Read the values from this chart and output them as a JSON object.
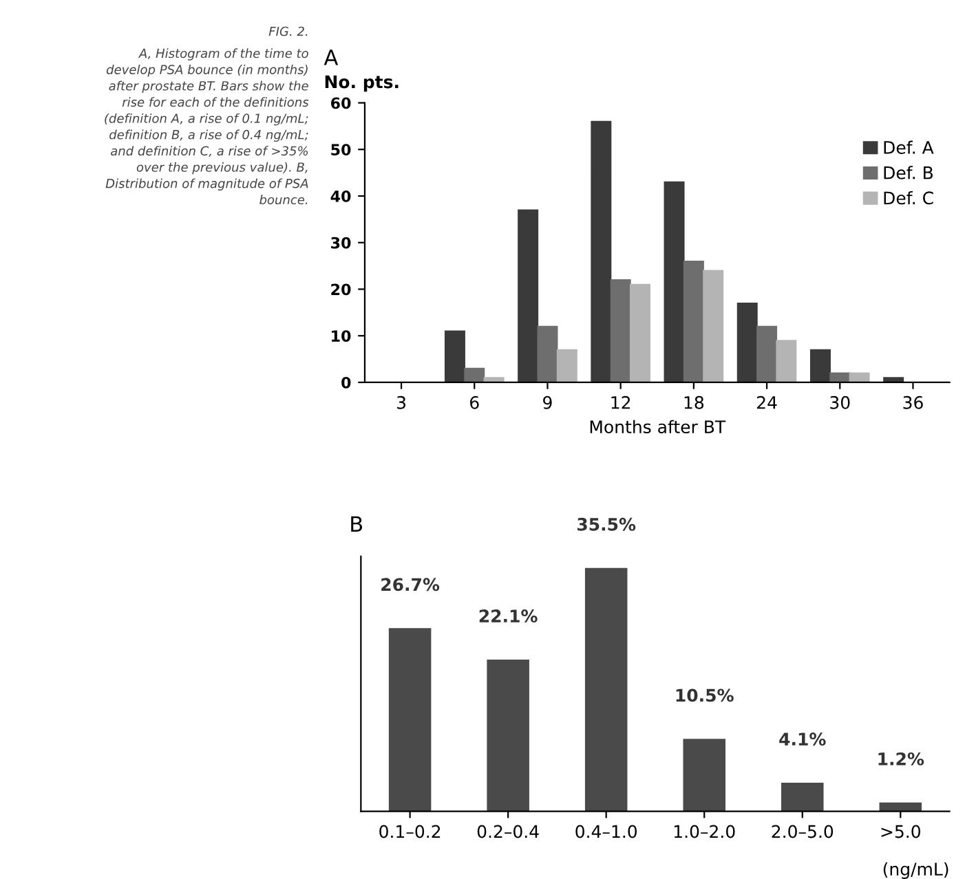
{
  "chart_data": [
    {
      "type": "bar",
      "title": "A",
      "ylabel": "No. pts.",
      "xlabel": "Months after BT",
      "categories": [
        "3",
        "6",
        "9",
        "12",
        "18",
        "24",
        "30",
        "36"
      ],
      "series": [
        {
          "name": "Def. A",
          "color": "#3a3a3a",
          "values": [
            0,
            11,
            37,
            56,
            43,
            17,
            7,
            1
          ]
        },
        {
          "name": "Def. B",
          "color": "#6e6e6e",
          "values": [
            0,
            3,
            12,
            22,
            26,
            12,
            2,
            0
          ]
        },
        {
          "name": "Def. C",
          "color": "#b4b4b4",
          "values": [
            0,
            1,
            7,
            21,
            24,
            9,
            2,
            0
          ]
        }
      ],
      "ylim": [
        0,
        60
      ],
      "yticks": [
        0,
        10,
        20,
        30,
        40,
        50,
        60
      ],
      "grid": false,
      "legend": "top right",
      "annotations": [
        "FIG. 2.",
        "A, Histogram of the time to\ndevelop PSA bounce (in months)\nafter prostate BT. Bars show the\nrise for each of the definitions\n(definition A, a rise of 0.1 ng/mL;\ndefinition B, a rise of 0.4 ng/mL;\nand definition C, a rise of >35%\nover the previous value). B,\nDistribution of magnitude of PSA\nbounce."
      ]
    },
    {
      "type": "bar",
      "title": "B",
      "xlabel": "(ng/mL)",
      "categories": [
        "0.1–0.2",
        "0.2–0.4",
        "0.4–1.0",
        "1.0–2.0",
        "2.0–5.0",
        ">5.0"
      ],
      "series": [
        {
          "color": "#4a4a4a",
          "values": [
            26.7,
            22.1,
            35.5,
            10.5,
            4.1,
            1.2
          ],
          "value_labels": [
            "26.7%",
            "22.1%",
            "35.5%",
            "10.5%",
            "4.1%",
            "1.2%"
          ]
        }
      ],
      "grid": false,
      "tick_labels": "x"
    }
  ]
}
